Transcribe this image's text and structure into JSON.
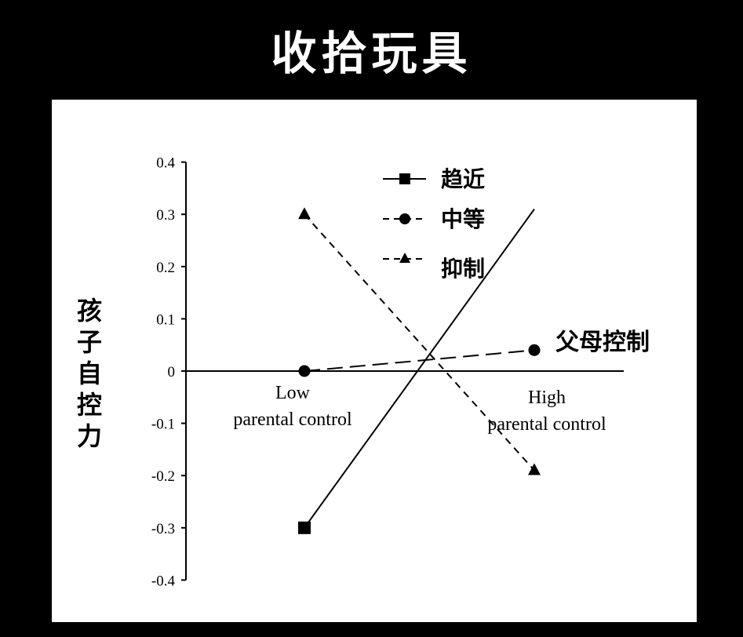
{
  "title": "收拾玩具",
  "chart_data": {
    "type": "line",
    "ylabel": "孩子自控力",
    "xlabel": "父母控制",
    "categories": [
      "Low\nparental control",
      "High\nparental control"
    ],
    "yticks": [
      "0.4",
      "0.3",
      "0.2",
      "0.1",
      "0",
      "-0.1",
      "-0.2",
      "-0.3",
      "-0.4"
    ],
    "ylim": [
      -0.4,
      0.4
    ],
    "grid": false,
    "legend_position": "top-center",
    "series": [
      {
        "name": "趋近",
        "values": [
          -0.3,
          0.31
        ],
        "marker": "square",
        "dash": "solid"
      },
      {
        "name": "中等",
        "values": [
          0,
          0.04
        ],
        "marker": "circle",
        "dash": "long-dash"
      },
      {
        "name": "抑制",
        "values": [
          0.3,
          -0.19
        ],
        "marker": "triangle",
        "dash": "short-dash"
      }
    ]
  },
  "colors": {
    "background": "#000000",
    "panel": "#ffffff",
    "title": "#ffffff",
    "ink": "#000000"
  }
}
